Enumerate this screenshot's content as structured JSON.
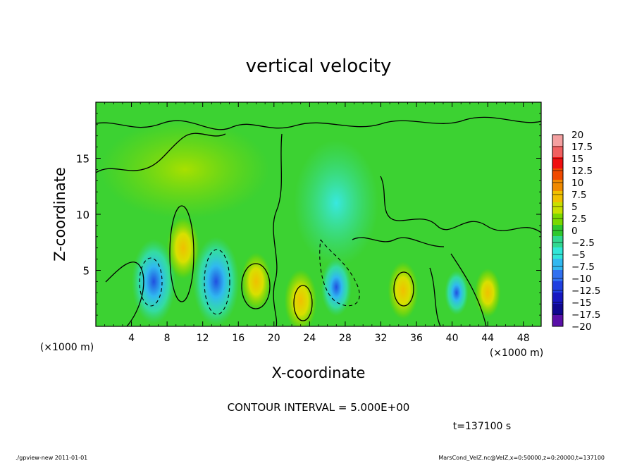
{
  "chart_data": {
    "type": "heatmap",
    "title": "vertical velocity",
    "xlabel": "X-coordinate",
    "ylabel": "Z-coordinate",
    "x_unit_left": "(×1000 m)",
    "x_unit_right": "(×1000 m)",
    "xlim": [
      0,
      50
    ],
    "ylim": [
      0,
      20
    ],
    "xticks": [
      4,
      8,
      12,
      16,
      20,
      24,
      28,
      32,
      36,
      40,
      44,
      48
    ],
    "yticks": [
      5,
      10,
      15
    ],
    "contour_interval": "CONTOUR INTERVAL = 5.000E+00",
    "time": "t=137100 s",
    "colorbar": {
      "labels": [
        "20",
        "17.5",
        "15",
        "12.5",
        "10",
        "7.5",
        "5",
        "2.5",
        "0",
        "-2.5",
        "-5",
        "-7.5",
        "-10",
        "-12.5",
        "-15",
        "-17.5",
        "-20"
      ],
      "colors": [
        "#f4a0a0",
        "#f06060",
        "#f01010",
        "#f04a00",
        "#f08a00",
        "#f0c000",
        "#c8e000",
        "#7ad800",
        "#2ec82e",
        "#30d890",
        "#30e6d8",
        "#30b8f0",
        "#3070f0",
        "#2040e0",
        "#1818c0",
        "#100890",
        "#5a10a8"
      ]
    },
    "features": [
      {
        "x": 6.5,
        "z": 4,
        "w": -12
      },
      {
        "x": 9.8,
        "z": 7,
        "w": 7
      },
      {
        "x": 13.5,
        "z": 4,
        "w": -13
      },
      {
        "x": 18,
        "z": 4,
        "w": 6
      },
      {
        "x": 23,
        "z": 2.3,
        "w": 7
      },
      {
        "x": 27,
        "z": 3.5,
        "w": -6
      },
      {
        "x": 34.5,
        "z": 3.2,
        "w": 6
      },
      {
        "x": 40.5,
        "z": 3,
        "w": -3
      },
      {
        "x": 44,
        "z": 3,
        "w": 4
      }
    ]
  },
  "footer": {
    "left": "./gpview-new  2011-01-01",
    "right": "MarsCond_VelZ.nc@VelZ,x=0:50000,z=0:20000,t=137100"
  }
}
